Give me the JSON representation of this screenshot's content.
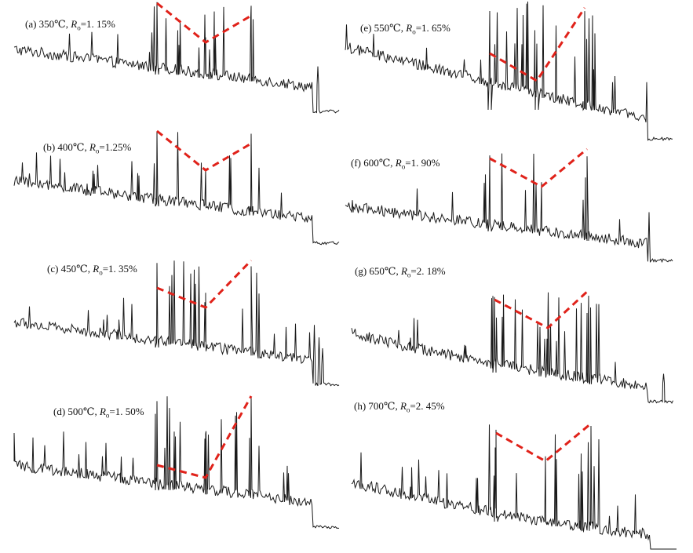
{
  "colors": {
    "trace": "#1a1a1a",
    "trend": "#e0221a",
    "background": "#ffffff"
  },
  "chart_data": [
    {
      "type": "line",
      "panel": "a",
      "label": {
        "prefix": "(a) 350℃, ",
        "symbol": "R",
        "subscript": "o",
        "suffix": "=1. 15%"
      },
      "trend": [
        210,
        260,
        320
      ]
    },
    {
      "type": "line",
      "panel": "b",
      "label": {
        "prefix": "(b) 400℃, ",
        "symbol": "R",
        "subscript": "o",
        "suffix": "=1.25%"
      },
      "trend": [
        185,
        225,
        185
      ]
    },
    {
      "type": "line",
      "panel": "c",
      "label": {
        "prefix": "(c) 450℃, ",
        "symbol": "R",
        "subscript": "o",
        "suffix": "=1. 35%"
      },
      "trend": [
        170,
        195,
        110
      ]
    },
    {
      "type": "line",
      "panel": "d",
      "label": {
        "prefix": "(d) 500℃, ",
        "symbol": "R",
        "subscript": "o",
        "suffix": "=1. 50%"
      },
      "trend": [
        150,
        165,
        40
      ]
    },
    {
      "type": "line",
      "panel": "e",
      "label": {
        "prefix": "(e) 550℃, ",
        "symbol": "R",
        "subscript": "o",
        "suffix": "=1. 65%"
      },
      "trend": [
        130,
        190,
        25
      ]
    },
    {
      "type": "line",
      "panel": "f",
      "label": {
        "prefix": "(f) 600℃, ",
        "symbol": "R",
        "subscript": "o",
        "suffix": "=1. 90%"
      },
      "trend": [
        150,
        210,
        110
      ]
    },
    {
      "type": "line",
      "panel": "g",
      "label": {
        "prefix": "(g) 650℃, ",
        "symbol": "R",
        "subscript": "o",
        "suffix": "=2. 18%"
      },
      "trend": [
        150,
        190,
        110
      ]
    },
    {
      "type": "line",
      "panel": "h",
      "label": {
        "prefix": "(h) 700℃, ",
        "symbol": "R",
        "subscript": "o",
        "suffix": "=2. 45%"
      },
      "trend": [
        150,
        200,
        130
      ]
    }
  ]
}
